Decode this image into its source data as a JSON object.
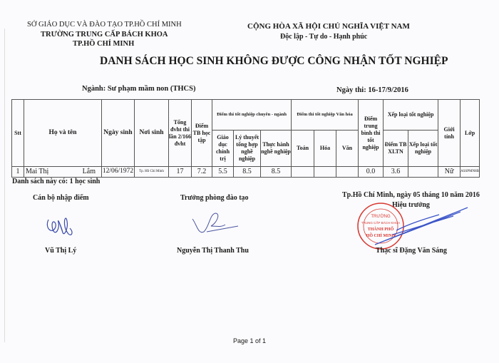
{
  "header_left": {
    "line1": "SỞ GIÁO DỤC VÀ ĐÀO TẠO TP.HỒ CHÍ MINH",
    "line2": "TRƯỜNG TRUNG CẤP BÁCH KHOA",
    "line3": "TP.HỒ CHÍ MINH"
  },
  "header_right": {
    "line1": "CỘNG HÒA XÃ HỘI CHỦ NGHĨA VIỆT NAM",
    "line2": "Độc lập - Tự do - Hạnh phúc"
  },
  "title": "DANH SÁCH HỌC SINH KHÔNG ĐƯỢC CÔNG NHẬN TỐT NGHIỆP",
  "major": "Ngành: Sư phạm mầm non (THCS)",
  "exam_date": "Ngày thi: 16-17/9/2016",
  "table": {
    "headers": {
      "stt": "Stt",
      "name": "Họ và tên",
      "dob": "Ngày sinh",
      "pob": "Nơi sinh",
      "total_credits": "Tổng đvht thi lần 2/166 đvht",
      "gpa": "Điểm TB học tập",
      "major_exam": "Điểm thi tốt nghiệp chuyên - ngành",
      "politics": "Giáo dục chính trị",
      "theory": "Lý thuyết tổng hợp nghề nghiệp",
      "practice": "Thực hành nghề nghiệp",
      "culture_exam": "Điểm thi tốt nghiệp Văn hóa",
      "math": "Toán",
      "chem": "Hóa",
      "lit": "Văn",
      "exam_avg": "Điểm trung bình thi tốt nghiệp",
      "grad_rank": "Xếp loại tốt nghiệp",
      "rank_score": "Điểm TB XLTN",
      "rank": "Xếp loại tốt nghiệp",
      "gender": "Giới tính",
      "class": "Lớp"
    },
    "rows": [
      {
        "stt": "1",
        "last": "Mai Thị",
        "first": "Lắm",
        "dob": "12/06/1972",
        "pob": "Tp. Hồ Chí Minh",
        "total_credits": "17",
        "gpa": "7.2",
        "politics": "5.5",
        "theory": "8.5",
        "practice": "8.5",
        "math": "",
        "chem": "",
        "lit": "",
        "exam_avg": "0.0",
        "rank_score": "3.6",
        "rank": "",
        "gender": "Nữ",
        "class": "ASSPMN8B"
      }
    ]
  },
  "summary": "Danh sách này có: 1 học sinh",
  "signatures": {
    "entry_title": "Cán bộ nhập điểm",
    "entry_name": "Vũ Thị Lý",
    "training_title": "Trưởng phòng đào tạo",
    "training_name": "Nguyễn Thị Thanh Thu",
    "place_date": "Tp.Hồ Chí Minh, ngày 05 tháng 10 năm 2016",
    "principal_title": "Hiệu trưởng",
    "principal_name": "Thạc sĩ Đặng Văn Sáng"
  },
  "stamp": {
    "text": "TRƯỜNG TRUNG CẤP BÁCH KHOA THÀNH PHỐ HỒ CHÍ MINH",
    "color": "#d9372f"
  },
  "footer": "Page 1 of 1"
}
